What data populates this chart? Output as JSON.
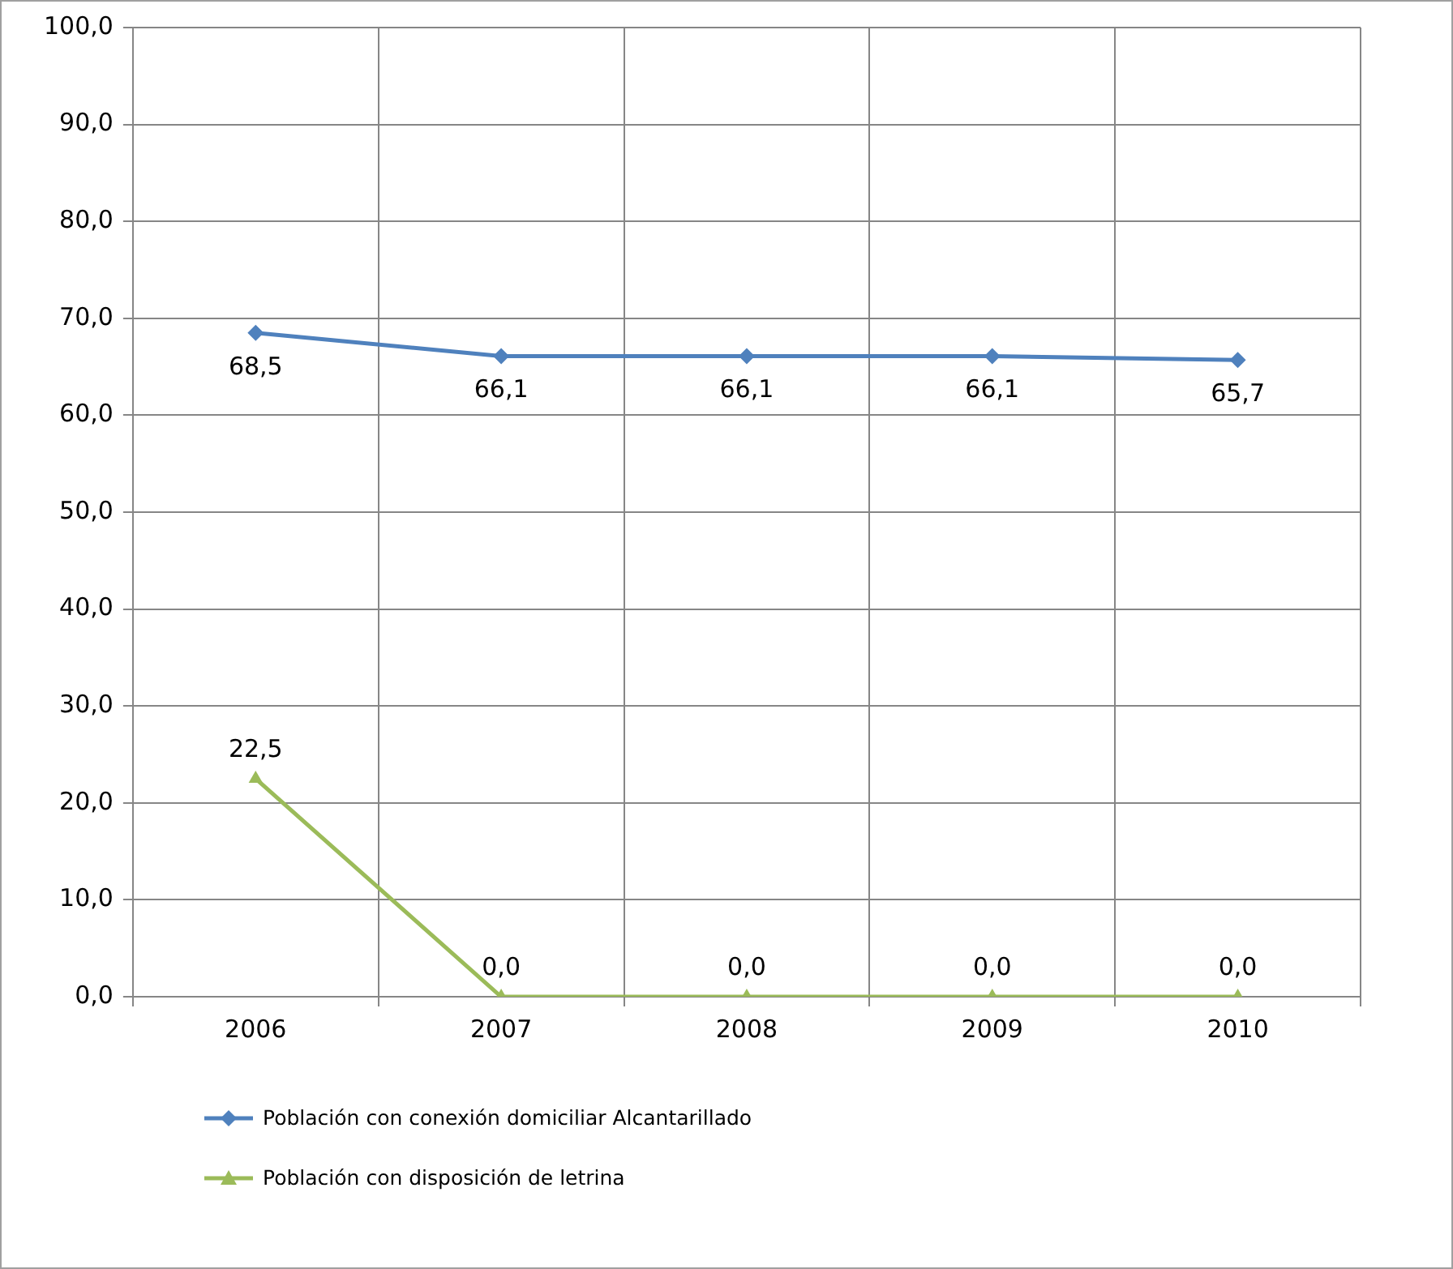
{
  "chart_data": {
    "type": "line",
    "categories": [
      "2006",
      "2007",
      "2008",
      "2009",
      "2010"
    ],
    "series": [
      {
        "name": "Población con conexión domiciliar Alcantarillado",
        "color": "#4f81bd",
        "marker": "diamond",
        "values": [
          68.5,
          66.1,
          66.1,
          66.1,
          65.7
        ],
        "value_labels": [
          "68,5",
          "66,1",
          "66,1",
          "66,1",
          "65,7"
        ]
      },
      {
        "name": "Población con disposición de letrina",
        "color": "#9bbb59",
        "marker": "triangle",
        "values": [
          22.5,
          0,
          0,
          0,
          0
        ],
        "value_labels": [
          "22,5",
          "0,0",
          "0,0",
          "0,0",
          "0,0"
        ]
      }
    ],
    "ylim": [
      0,
      100
    ],
    "yticks": [
      {
        "value": 0,
        "label": "0,0"
      },
      {
        "value": 10,
        "label": "10,0"
      },
      {
        "value": 20,
        "label": "20,0"
      },
      {
        "value": 30,
        "label": "30,0"
      },
      {
        "value": 40,
        "label": "40,0"
      },
      {
        "value": 50,
        "label": "50,0"
      },
      {
        "value": 60,
        "label": "60,0"
      },
      {
        "value": 70,
        "label": "70,0"
      },
      {
        "value": 80,
        "label": "80,0"
      },
      {
        "value": 90,
        "label": "90,0"
      },
      {
        "value": 100,
        "label": "100,0"
      }
    ],
    "grid": true,
    "legend": "bottom left",
    "line_style": "solid"
  }
}
